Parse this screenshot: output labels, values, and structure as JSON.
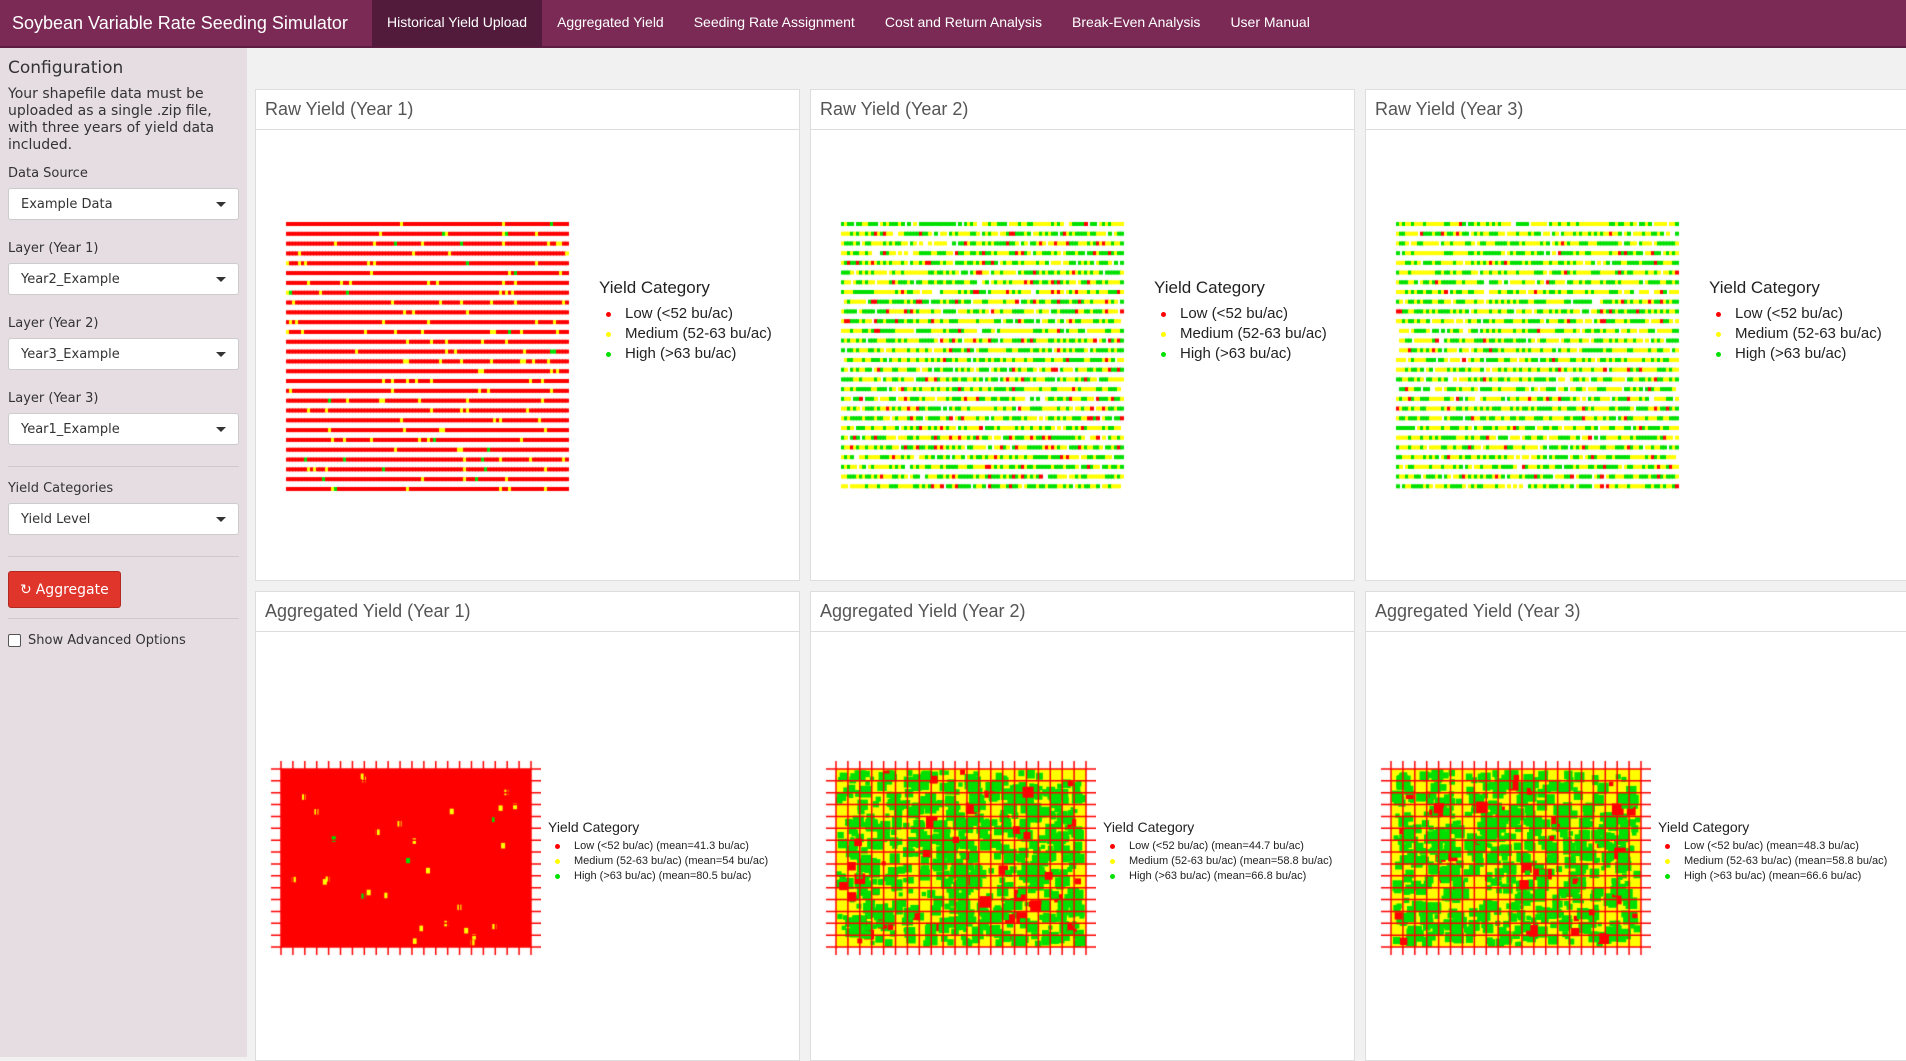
{
  "app": {
    "title": "Soybean Variable Rate Seeding Simulator"
  },
  "nav": {
    "tabs": [
      {
        "label": "Historical Yield Upload",
        "active": true
      },
      {
        "label": "Aggregated Yield"
      },
      {
        "label": "Seeding Rate Assignment"
      },
      {
        "label": "Cost and Return Analysis"
      },
      {
        "label": "Break-Even Analysis"
      },
      {
        "label": "User Manual"
      }
    ]
  },
  "sidebar": {
    "title": "Configuration",
    "description": "Your shapefile data must be uploaded as a single .zip file, with three years of yield data included.",
    "data_source": {
      "label": "Data Source",
      "value": "Example Data"
    },
    "layer1": {
      "label": "Layer (Year 1)",
      "value": "Year2_Example"
    },
    "layer2": {
      "label": "Layer (Year 2)",
      "value": "Year3_Example"
    },
    "layer3": {
      "label": "Layer (Year 3)",
      "value": "Year1_Example"
    },
    "categories": {
      "label": "Yield Categories",
      "value": "Yield Level"
    },
    "aggregate_label": "Aggregate",
    "refresh_icon": "refresh-icon",
    "advanced_label": "Show Advanced Options",
    "advanced_checked": false
  },
  "colors": {
    "low": "#ff0000",
    "medium": "#ffff00",
    "high": "#00e000",
    "brand": "#7a2a55"
  },
  "raw": [
    {
      "title": "Raw Yield (Year 1)",
      "legend_title": "Yield Category",
      "legend": [
        "Low (<52 bu/ac)",
        "Medium (52-63 bu/ac)",
        "High (>63 bu/ac)"
      ]
    },
    {
      "title": "Raw Yield (Year 2)",
      "legend_title": "Yield Category",
      "legend": [
        "Low (<52 bu/ac)",
        "Medium (52-63 bu/ac)",
        "High (>63 bu/ac)"
      ]
    },
    {
      "title": "Raw Yield (Year 3)",
      "legend_title": "Yield Category",
      "legend": [
        "Low (<52 bu/ac)",
        "Medium (52-63 bu/ac)",
        "High (>63 bu/ac)"
      ]
    }
  ],
  "agg": [
    {
      "title": "Aggregated Yield (Year 1)",
      "legend_title": "Yield Category",
      "legend": [
        "Low (<52 bu/ac) (mean=41.3 bu/ac)",
        "Medium (52-63 bu/ac) (mean=54 bu/ac)",
        "High (>63 bu/ac) (mean=80.5 bu/ac)"
      ]
    },
    {
      "title": "Aggregated Yield (Year 2)",
      "legend_title": "Yield Category",
      "legend": [
        "Low (<52 bu/ac) (mean=44.7 bu/ac)",
        "Medium (52-63 bu/ac) (mean=58.8 bu/ac)",
        "High (>63 bu/ac) (mean=66.8 bu/ac)"
      ]
    },
    {
      "title": "Aggregated Yield (Year 3)",
      "legend_title": "Yield Category",
      "legend": [
        "Low (<52 bu/ac) (mean=48.3 bu/ac)",
        "Medium (52-63 bu/ac) (mean=58.8 bu/ac)",
        "High (>63 bu/ac) (mean=66.6 bu/ac)"
      ]
    }
  ]
}
